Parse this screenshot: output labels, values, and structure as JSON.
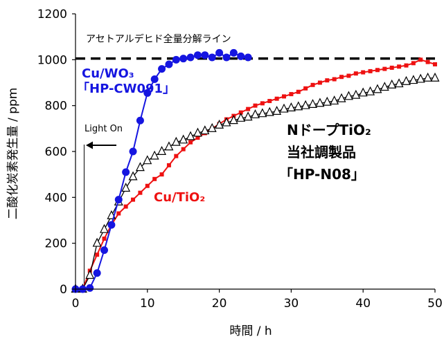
{
  "chart_data": {
    "type": "line",
    "xlabel": "時間 / h",
    "ylabel": "二酸化炭素発生量 / ppm",
    "xlim": [
      0,
      50
    ],
    "ylim": [
      0,
      1200
    ],
    "x_ticks": [
      "0",
      "10",
      "20",
      "30",
      "40",
      "50"
    ],
    "y_ticks": [
      "0",
      "200",
      "400",
      "600",
      "800",
      "1000",
      "1200"
    ],
    "grid": false,
    "reference_line": {
      "label": "アセトアルデヒド全量分解ライン",
      "y": 1005
    },
    "light_on": {
      "label": "Light On",
      "x": 1.2
    },
    "series": [
      {
        "name": "Cu/WO3 「HP-CW091」",
        "label_line1": "Cu/WO₃",
        "label_line2": "「HP-CW091」",
        "color": "#1515e0",
        "marker": "circle",
        "x": [
          0,
          1,
          2,
          3,
          4,
          5,
          6,
          7,
          8,
          9,
          10,
          11,
          12,
          13,
          14,
          15,
          16,
          17,
          18,
          19,
          20,
          21,
          22,
          23,
          24
        ],
        "y": [
          0,
          0,
          5,
          70,
          170,
          280,
          390,
          510,
          600,
          735,
          855,
          915,
          960,
          980,
          1000,
          1005,
          1010,
          1020,
          1020,
          1010,
          1030,
          1010,
          1030,
          1015,
          1010
        ]
      },
      {
        "name": "Cu/TiO2",
        "label": "Cu/TiO₂",
        "color": "#ee1111",
        "marker": "square",
        "x": [
          0,
          1,
          2,
          3,
          4,
          5,
          6,
          7,
          8,
          9,
          10,
          11,
          12,
          13,
          14,
          15,
          16,
          17,
          18,
          19,
          20,
          21,
          22,
          23,
          24,
          25,
          26,
          27,
          28,
          29,
          30,
          31,
          32,
          33,
          34,
          35,
          36,
          37,
          38,
          39,
          40,
          41,
          42,
          43,
          44,
          45,
          46,
          47,
          48,
          49,
          50
        ],
        "y": [
          0,
          0,
          80,
          150,
          220,
          280,
          330,
          360,
          390,
          420,
          450,
          480,
          500,
          540,
          580,
          610,
          640,
          660,
          680,
          700,
          720,
          740,
          755,
          770,
          785,
          800,
          810,
          820,
          830,
          840,
          850,
          860,
          875,
          890,
          900,
          910,
          915,
          925,
          930,
          940,
          945,
          950,
          955,
          960,
          965,
          970,
          975,
          985,
          1000,
          990,
          980
        ]
      },
      {
        "name": "NドープTiO2 当社調製品 「HP-N08」",
        "label_line1": "NドープTiO₂",
        "label_line2": "当社調製品",
        "label_line3": "「HP-N08」",
        "color": "#000000",
        "marker": "triangle-open",
        "x": [
          0,
          1,
          2,
          3,
          4,
          5,
          6,
          7,
          8,
          9,
          10,
          11,
          12,
          13,
          14,
          15,
          16,
          17,
          18,
          19,
          20,
          21,
          22,
          23,
          24,
          25,
          26,
          27,
          28,
          29,
          30,
          31,
          32,
          33,
          34,
          35,
          36,
          37,
          38,
          39,
          40,
          41,
          42,
          43,
          44,
          45,
          46,
          47,
          48,
          49,
          50
        ],
        "y": [
          0,
          0,
          60,
          200,
          260,
          320,
          380,
          440,
          490,
          530,
          560,
          580,
          600,
          620,
          640,
          650,
          665,
          680,
          690,
          700,
          715,
          725,
          735,
          745,
          750,
          760,
          765,
          770,
          775,
          785,
          790,
          795,
          800,
          805,
          810,
          815,
          820,
          830,
          840,
          845,
          855,
          860,
          870,
          880,
          890,
          895,
          905,
          910,
          915,
          920,
          920
        ]
      }
    ]
  }
}
